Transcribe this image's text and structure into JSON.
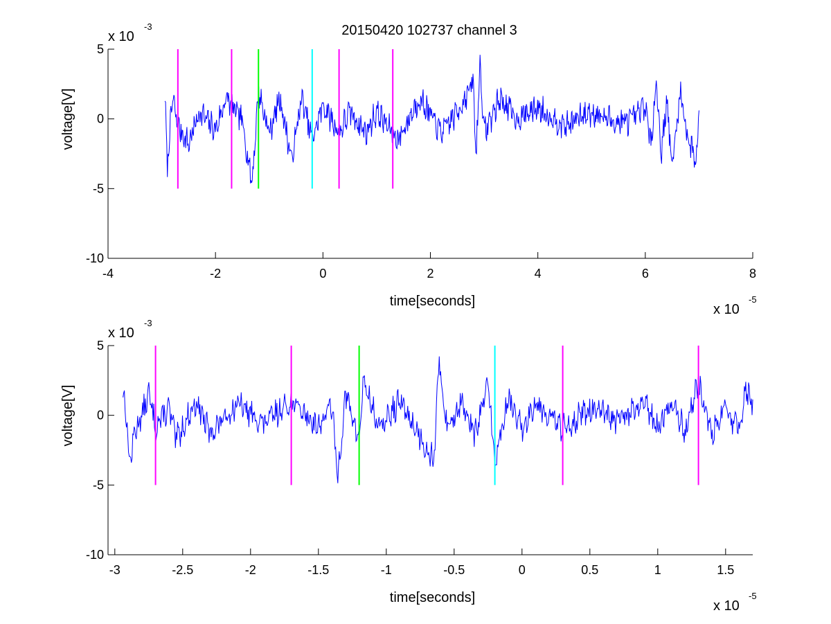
{
  "figure": {
    "title": "20150420 102737 channel 3"
  },
  "chart_data": [
    {
      "type": "line",
      "xlabel": "time[seconds]",
      "ylabel": "voltage[V]",
      "x_multiplier": {
        "base": "x 10",
        "exp": "-5"
      },
      "y_multiplier": {
        "base": "x 10",
        "exp": "-3"
      },
      "xlim": [
        -4,
        8
      ],
      "ylim": [
        -10,
        5
      ],
      "xticks": [
        -4,
        -2,
        0,
        2,
        4,
        6,
        8
      ],
      "xtick_labels": [
        "-4",
        "-2",
        "0",
        "2",
        "4",
        "6",
        "8"
      ],
      "yticks": [
        -10,
        -5,
        0,
        5
      ],
      "ytick_labels": [
        "-10",
        "-5",
        "0",
        "5"
      ],
      "grid": false,
      "series": [
        {
          "color": "#0000ff",
          "x_range": [
            -2.94,
            7.0
          ],
          "noise_seed": 7,
          "anchors": [
            [
              -2.94,
              1.7
            ],
            [
              -2.9,
              -3.5
            ],
            [
              -2.85,
              -1.0
            ],
            [
              -2.8,
              1.5
            ],
            [
              -2.7,
              -0.5
            ],
            [
              -2.5,
              -1.8
            ],
            [
              -2.3,
              0.5
            ],
            [
              -2.0,
              -0.8
            ],
            [
              -1.8,
              1.5
            ],
            [
              -1.5,
              -0.2
            ],
            [
              -1.32,
              -4.6
            ],
            [
              -1.2,
              2.0
            ],
            [
              -1.0,
              -1.0
            ],
            [
              -0.8,
              1.5
            ],
            [
              -0.58,
              -3.0
            ],
            [
              -0.4,
              1.5
            ],
            [
              -0.2,
              -1.5
            ],
            [
              0.0,
              1.0
            ],
            [
              0.3,
              -1.0
            ],
            [
              0.5,
              0.5
            ],
            [
              0.8,
              -1.0
            ],
            [
              1.0,
              0.5
            ],
            [
              1.4,
              -1.5
            ],
            [
              1.8,
              1.5
            ],
            [
              2.2,
              -1.0
            ],
            [
              2.5,
              0.5
            ],
            [
              2.8,
              2.6
            ],
            [
              2.85,
              -3.0
            ],
            [
              2.92,
              4.2
            ],
            [
              3.0,
              -1.0
            ],
            [
              3.3,
              1.5
            ],
            [
              3.6,
              0.0
            ],
            [
              4.0,
              0.8
            ],
            [
              4.5,
              -0.5
            ],
            [
              5.0,
              0.5
            ],
            [
              5.5,
              -0.3
            ],
            [
              5.8,
              0.0
            ],
            [
              6.0,
              1.0
            ],
            [
              6.1,
              -2.0
            ],
            [
              6.2,
              2.8
            ],
            [
              6.3,
              -2.5
            ],
            [
              6.4,
              1.5
            ],
            [
              6.5,
              -3.6
            ],
            [
              6.65,
              2.0
            ],
            [
              6.8,
              -1.5
            ],
            [
              6.95,
              -3.0
            ],
            [
              7.0,
              0.8
            ]
          ]
        }
      ],
      "vertical_markers": [
        {
          "x": -2.7,
          "y_range": [
            -5,
            5
          ],
          "color": "#ff00ff"
        },
        {
          "x": -1.7,
          "y_range": [
            -5,
            5
          ],
          "color": "#ff00ff"
        },
        {
          "x": -1.2,
          "y_range": [
            -5,
            5
          ],
          "color": "#00ff00"
        },
        {
          "x": -0.2,
          "y_range": [
            -5,
            5
          ],
          "color": "#00ffff"
        },
        {
          "x": 0.3,
          "y_range": [
            -5,
            5
          ],
          "color": "#ff00ff"
        },
        {
          "x": 1.3,
          "y_range": [
            -5,
            5
          ],
          "color": "#ff00ff"
        }
      ]
    },
    {
      "type": "line",
      "xlabel": "time[seconds]",
      "ylabel": "voltage[V]",
      "x_multiplier": {
        "base": "x 10",
        "exp": "-5"
      },
      "y_multiplier": {
        "base": "x 10",
        "exp": "-3"
      },
      "xlim": [
        -3.05,
        1.7
      ],
      "ylim": [
        -10,
        5
      ],
      "xticks": [
        -3,
        -2.5,
        -2,
        -1.5,
        -1,
        -0.5,
        0,
        0.5,
        1,
        1.5
      ],
      "xtick_labels": [
        "-3",
        "-2.5",
        "-2",
        "-1.5",
        "-1",
        "-0.5",
        "0",
        "0.5",
        "1",
        "1.5"
      ],
      "yticks": [
        -10,
        -5,
        0,
        5
      ],
      "ytick_labels": [
        "-10",
        "-5",
        "0",
        "5"
      ],
      "grid": false,
      "series": [
        {
          "color": "#0000ff",
          "x_range": [
            -2.94,
            1.7
          ],
          "noise_seed": 13,
          "anchors": [
            [
              -2.94,
              1.7
            ],
            [
              -2.92,
              0.5
            ],
            [
              -2.89,
              -3.5
            ],
            [
              -2.85,
              -1.0
            ],
            [
              -2.8,
              0.0
            ],
            [
              -2.75,
              1.5
            ],
            [
              -2.7,
              -0.8
            ],
            [
              -2.6,
              0.5
            ],
            [
              -2.55,
              -1.8
            ],
            [
              -2.4,
              1.0
            ],
            [
              -2.3,
              -1.3
            ],
            [
              -2.1,
              0.8
            ],
            [
              -1.9,
              -0.6
            ],
            [
              -1.7,
              1.0
            ],
            [
              -1.5,
              -0.8
            ],
            [
              -1.4,
              0.8
            ],
            [
              -1.36,
              -4.6
            ],
            [
              -1.3,
              1.5
            ],
            [
              -1.2,
              -1.8
            ],
            [
              -1.17,
              2.5
            ],
            [
              -1.05,
              -1.0
            ],
            [
              -0.9,
              1.0
            ],
            [
              -0.75,
              -1.5
            ],
            [
              -0.65,
              -3.2
            ],
            [
              -0.61,
              3.8
            ],
            [
              -0.55,
              -1.0
            ],
            [
              -0.45,
              1.0
            ],
            [
              -0.35,
              -1.5
            ],
            [
              -0.25,
              2.3
            ],
            [
              -0.2,
              -3.4
            ],
            [
              -0.1,
              1.2
            ],
            [
              0.0,
              -1.0
            ],
            [
              0.1,
              1.0
            ],
            [
              0.3,
              -1.0
            ],
            [
              0.5,
              0.5
            ],
            [
              0.7,
              -0.5
            ],
            [
              0.9,
              0.8
            ],
            [
              1.0,
              -1.0
            ],
            [
              1.1,
              1.0
            ],
            [
              1.2,
              -1.2
            ],
            [
              1.3,
              2.4
            ],
            [
              1.4,
              -1.5
            ],
            [
              1.5,
              0.5
            ],
            [
              1.6,
              -1.0
            ],
            [
              1.65,
              2.0
            ],
            [
              1.7,
              0.8
            ]
          ]
        }
      ],
      "vertical_markers": [
        {
          "x": -2.7,
          "y_range": [
            -5,
            5
          ],
          "color": "#ff00ff"
        },
        {
          "x": -1.7,
          "y_range": [
            -5,
            5
          ],
          "color": "#ff00ff"
        },
        {
          "x": -1.2,
          "y_range": [
            -5,
            5
          ],
          "color": "#00ff00"
        },
        {
          "x": -0.2,
          "y_range": [
            -5,
            5
          ],
          "color": "#00ffff"
        },
        {
          "x": 0.3,
          "y_range": [
            -5,
            5
          ],
          "color": "#ff00ff"
        },
        {
          "x": 1.3,
          "y_range": [
            -5,
            5
          ],
          "color": "#ff00ff"
        }
      ]
    }
  ]
}
